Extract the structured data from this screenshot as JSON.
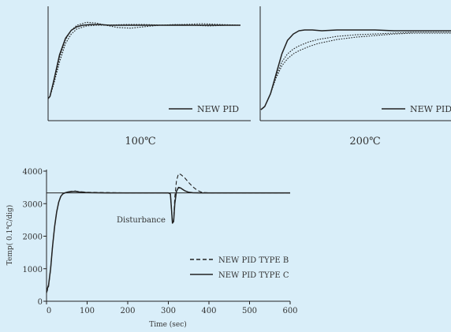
{
  "background": "#d9eef9",
  "line_color": "#222222",
  "chart_data": [
    {
      "type": "line",
      "caption": "100℃",
      "x_axis_visible": false,
      "y_axis_visible": false,
      "legend": {
        "placement": "bottom-right",
        "entries": [
          {
            "label": "NEW PID",
            "style": "solid"
          }
        ]
      },
      "series": [
        {
          "name": "NEW PID",
          "style": "solid",
          "x": [
            0,
            0.01,
            0.03,
            0.06,
            0.09,
            0.12,
            0.15,
            0.18,
            0.22,
            0.27,
            0.32,
            0.4,
            0.5,
            0.6,
            0.7,
            0.8,
            0.9,
            1.0
          ],
          "y": [
            0.0,
            0.03,
            0.25,
            0.6,
            0.82,
            0.93,
            0.98,
            1.0,
            1.01,
            1.01,
            1.0,
            1.0,
            1.0,
            1.0,
            1.0,
            1.0,
            1.0,
            1.0
          ]
        },
        {
          "style": "dotted",
          "x": [
            0,
            0.01,
            0.03,
            0.06,
            0.09,
            0.12,
            0.15,
            0.2,
            0.25,
            0.3,
            0.36,
            0.43,
            0.5,
            0.58,
            0.66,
            0.75,
            0.84,
            0.92,
            0.97,
            1.0
          ],
          "y": [
            0.0,
            0.03,
            0.22,
            0.56,
            0.8,
            0.93,
            1.0,
            1.04,
            1.03,
            1.0,
            0.97,
            0.96,
            0.98,
            1.0,
            1.01,
            1.0,
            0.99,
            1.0,
            1.0,
            1.0
          ]
        },
        {
          "style": "dotted",
          "x": [
            0,
            0.01,
            0.03,
            0.06,
            0.09,
            0.12,
            0.15,
            0.2,
            0.25,
            0.3,
            0.4,
            0.5,
            0.6,
            0.7,
            0.8,
            0.9,
            1.0
          ],
          "y": [
            0.0,
            0.03,
            0.2,
            0.5,
            0.75,
            0.88,
            0.95,
            0.99,
            1.0,
            1.0,
            1.01,
            1.01,
            1.0,
            1.01,
            1.02,
            1.01,
            1.0
          ]
        }
      ]
    },
    {
      "type": "line",
      "caption": "200℃",
      "x_axis_visible": false,
      "y_axis_visible": false,
      "legend": {
        "placement": "bottom-right",
        "entries": [
          {
            "label": "NEW PID",
            "style": "solid"
          }
        ]
      },
      "series": [
        {
          "name": "NEW PID",
          "style": "solid",
          "x": [
            0,
            0.02,
            0.05,
            0.08,
            0.11,
            0.14,
            0.17,
            0.2,
            0.23,
            0.27,
            0.32,
            0.4,
            0.5,
            0.6,
            0.7,
            0.8,
            0.9,
            1.0
          ],
          "y": [
            0.0,
            0.04,
            0.2,
            0.45,
            0.7,
            0.87,
            0.95,
            0.99,
            1.0,
            1.0,
            0.99,
            1.0,
            1.0,
            1.0,
            0.99,
            0.99,
            0.99,
            0.99
          ]
        },
        {
          "style": "dotted",
          "x": [
            0,
            0.02,
            0.05,
            0.08,
            0.11,
            0.14,
            0.17,
            0.2,
            0.25,
            0.3,
            0.4,
            0.5,
            0.6,
            0.7,
            0.8,
            0.9,
            1.0
          ],
          "y": [
            0.0,
            0.04,
            0.2,
            0.42,
            0.6,
            0.7,
            0.76,
            0.8,
            0.85,
            0.88,
            0.92,
            0.94,
            0.95,
            0.96,
            0.97,
            0.97,
            0.97
          ]
        },
        {
          "style": "dotted",
          "x": [
            0,
            0.02,
            0.05,
            0.08,
            0.11,
            0.14,
            0.17,
            0.2,
            0.25,
            0.3,
            0.4,
            0.5,
            0.6,
            0.7,
            0.8,
            0.9,
            1.0
          ],
          "y": [
            0.0,
            0.04,
            0.2,
            0.4,
            0.55,
            0.64,
            0.7,
            0.74,
            0.79,
            0.83,
            0.88,
            0.91,
            0.93,
            0.95,
            0.96,
            0.96,
            0.96
          ]
        }
      ]
    },
    {
      "type": "line",
      "xlabel": "Time (sec)",
      "ylabel": "Temp( 0.1℃/dig)",
      "xlim": [
        0,
        600
      ],
      "ylim": [
        0,
        4000
      ],
      "xticks": [
        0,
        100,
        200,
        300,
        400,
        500,
        600
      ],
      "yticks": [
        0,
        1000,
        2000,
        3000,
        4000
      ],
      "setpoint": 3330,
      "annotation": {
        "text": "Disturbance",
        "x": 300,
        "y": 2550
      },
      "legend": {
        "placement": "lower-right",
        "entries": [
          {
            "label": "NEW PID TYPE B",
            "style": "dashed"
          },
          {
            "label": "NEW PID TYPE C",
            "style": "solid"
          }
        ]
      },
      "series": [
        {
          "name": "NEW PID TYPE B",
          "style": "dashed",
          "x": [
            0,
            5,
            10,
            15,
            20,
            25,
            30,
            35,
            40,
            45,
            50,
            60,
            70,
            80,
            100,
            150,
            200,
            250,
            300,
            305,
            308,
            310,
            313,
            316,
            320,
            325,
            330,
            340,
            350,
            360,
            370,
            380,
            390,
            400,
            450,
            500,
            550,
            600
          ],
          "y": [
            250,
            450,
            1000,
            1700,
            2300,
            2750,
            3050,
            3220,
            3300,
            3330,
            3350,
            3380,
            3390,
            3370,
            3350,
            3340,
            3330,
            3330,
            3330,
            3300,
            2800,
            2400,
            2500,
            3200,
            3700,
            3920,
            3900,
            3800,
            3650,
            3520,
            3420,
            3360,
            3340,
            3330,
            3330,
            3330,
            3330,
            3330
          ]
        },
        {
          "name": "NEW PID TYPE C",
          "style": "solid",
          "x": [
            0,
            5,
            10,
            15,
            20,
            25,
            30,
            35,
            40,
            45,
            50,
            60,
            70,
            80,
            100,
            150,
            200,
            250,
            300,
            305,
            308,
            310,
            313,
            316,
            320,
            325,
            330,
            340,
            350,
            360,
            380,
            400,
            450,
            500,
            550,
            600
          ],
          "y": [
            300,
            500,
            1000,
            1700,
            2300,
            2750,
            3050,
            3220,
            3300,
            3330,
            3350,
            3370,
            3380,
            3360,
            3340,
            3330,
            3330,
            3330,
            3330,
            3300,
            2800,
            2400,
            2450,
            3000,
            3380,
            3500,
            3480,
            3400,
            3350,
            3335,
            3330,
            3330,
            3330,
            3330,
            3330,
            3330
          ]
        }
      ]
    }
  ]
}
